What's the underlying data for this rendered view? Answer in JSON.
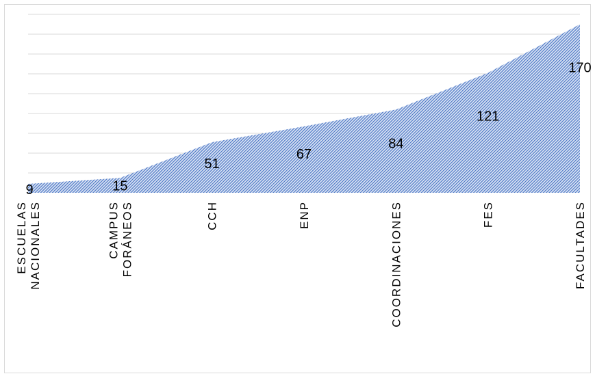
{
  "chart_data": {
    "type": "area",
    "categories": [
      [
        "ESCUELAS",
        "NACIONALES"
      ],
      [
        "CAMPUS",
        "FORÁNEOS"
      ],
      [
        "CCH"
      ],
      [
        "ENP"
      ],
      [
        "COORDINACIONES"
      ],
      [
        "FES"
      ],
      [
        "FACULTADES"
      ]
    ],
    "values": [
      9,
      15,
      51,
      67,
      84,
      121,
      170
    ],
    "ylim": [
      0,
      180
    ],
    "gridlines": true,
    "fill_color": "#4472c4",
    "fill_pattern": "diagonal-hatch",
    "legend": "none"
  }
}
